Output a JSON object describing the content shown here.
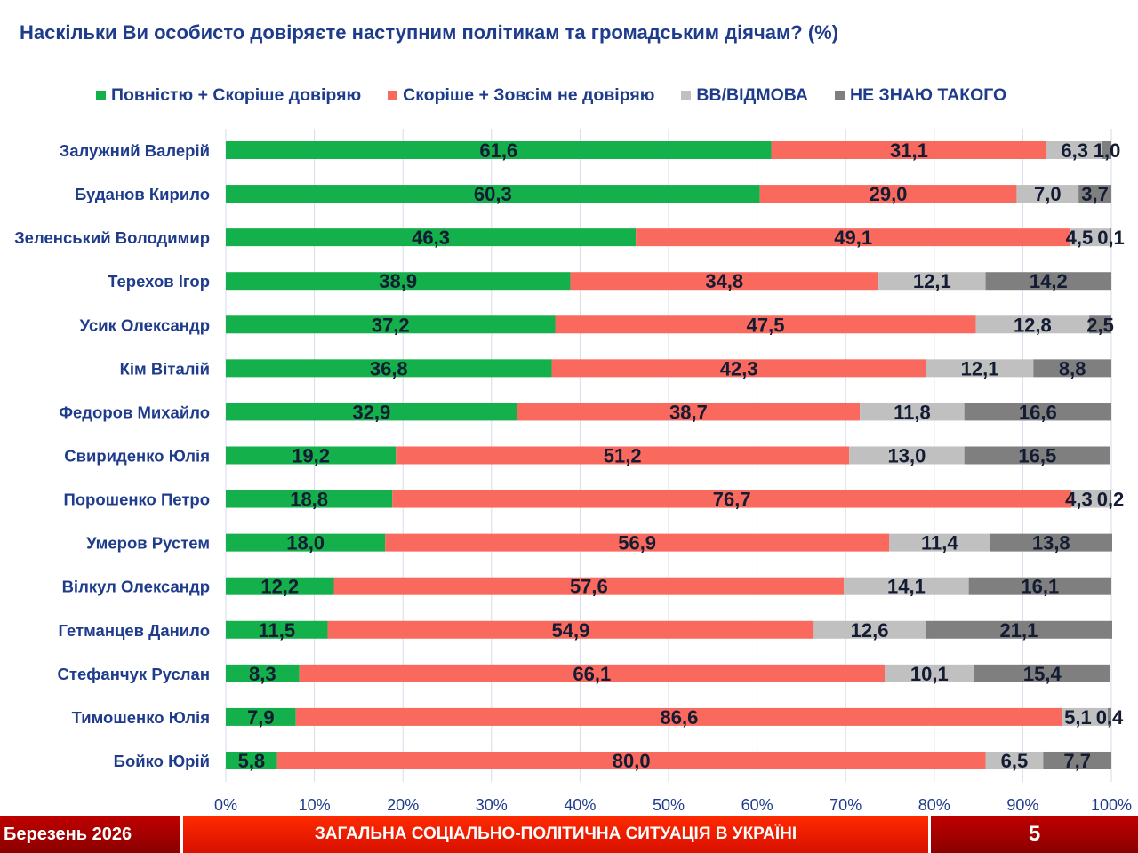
{
  "chart_data": {
    "type": "bar",
    "orientation": "horizontal",
    "stacked": true,
    "title": "Наскільки Ви особисто довіряєте наступним політикам та громадським діячам? (%)",
    "legend_position": "top",
    "xlim": [
      0,
      100
    ],
    "x_ticks": [
      "0%",
      "10%",
      "20%",
      "30%",
      "40%",
      "50%",
      "60%",
      "70%",
      "80%",
      "90%",
      "100%"
    ],
    "grid": true,
    "categories": [
      "Залужний Валерій",
      "Буданов Кирило",
      "Зеленський Володимир",
      "Терехов Ігор",
      "Усик Олександр",
      "Кім Віталій",
      "Федоров Михайло",
      "Свириденко Юлія",
      "Порошенко Петро",
      "Умеров Рустем",
      "Вілкул Олександр",
      "Гетманцев Данило",
      "Стефанчук Руслан",
      "Тимошенко Юлія",
      "Бойко Юрій"
    ],
    "series": [
      {
        "name": "Повністю + Скоріше довіряю",
        "color": "#13b04b",
        "values": [
          61.6,
          60.3,
          46.3,
          38.9,
          37.2,
          36.8,
          32.9,
          19.2,
          18.8,
          18.0,
          12.2,
          11.5,
          8.3,
          7.9,
          5.8
        ]
      },
      {
        "name": "Скоріше + Зовсім не довіряю",
        "color": "#f9695d",
        "values": [
          31.1,
          29.0,
          49.1,
          34.8,
          47.5,
          42.3,
          38.7,
          51.2,
          76.7,
          56.9,
          57.6,
          54.9,
          66.1,
          86.6,
          80.0
        ]
      },
      {
        "name": "ВВ/ВІДМОВА",
        "color": "#c0c0c0",
        "values": [
          6.3,
          7.0,
          4.5,
          12.1,
          12.8,
          12.1,
          11.8,
          13.0,
          4.3,
          11.4,
          14.1,
          12.6,
          10.1,
          5.1,
          6.5
        ]
      },
      {
        "name": "НЕ ЗНАЮ ТАКОГО",
        "color": "#7f7f7f",
        "values": [
          1.0,
          3.7,
          0.1,
          14.2,
          2.5,
          8.8,
          16.6,
          16.5,
          0.2,
          13.8,
          16.1,
          21.1,
          15.4,
          0.4,
          7.7
        ]
      }
    ]
  },
  "footer": {
    "date": "Березень 2026",
    "section": "ЗАГАЛЬНА СОЦІАЛЬНО-ПОЛІТИЧНА СИТУАЦІЯ В УКРАЇНІ",
    "page": "5"
  }
}
